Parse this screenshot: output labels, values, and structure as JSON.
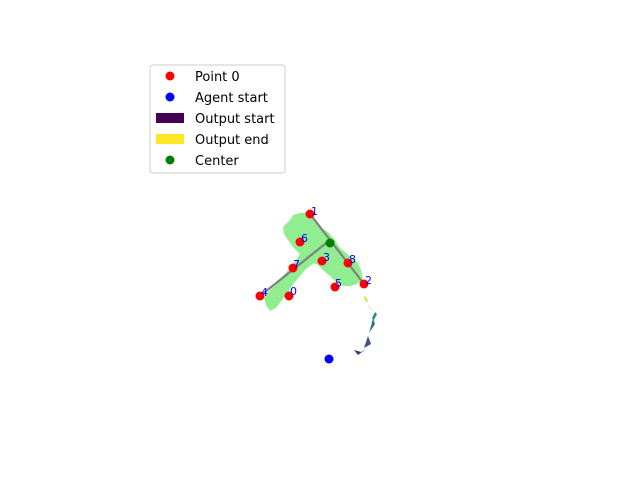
{
  "legend": {
    "items": [
      {
        "label": "Point 0",
        "marker": "circle",
        "color": "#ff0000"
      },
      {
        "label": "Agent start",
        "marker": "circle",
        "color": "#0000ff"
      },
      {
        "label": "Output start",
        "marker": "rect",
        "color": "#440154"
      },
      {
        "label": "Output end",
        "marker": "rect",
        "color": "#fde725"
      },
      {
        "label": "Center",
        "marker": "circle",
        "color": "#008000"
      }
    ]
  },
  "colors": {
    "points": "#ff0000",
    "labels": "#0000ff",
    "center": "#008000",
    "agent": "#0000ff",
    "region": "#90ee90",
    "segments": "#808080"
  },
  "points": [
    {
      "label": "0"
    },
    {
      "label": "1"
    },
    {
      "label": "2"
    },
    {
      "label": "3"
    },
    {
      "label": "4"
    },
    {
      "label": "5"
    },
    {
      "label": "6"
    },
    {
      "label": "7"
    },
    {
      "label": "8"
    }
  ]
}
